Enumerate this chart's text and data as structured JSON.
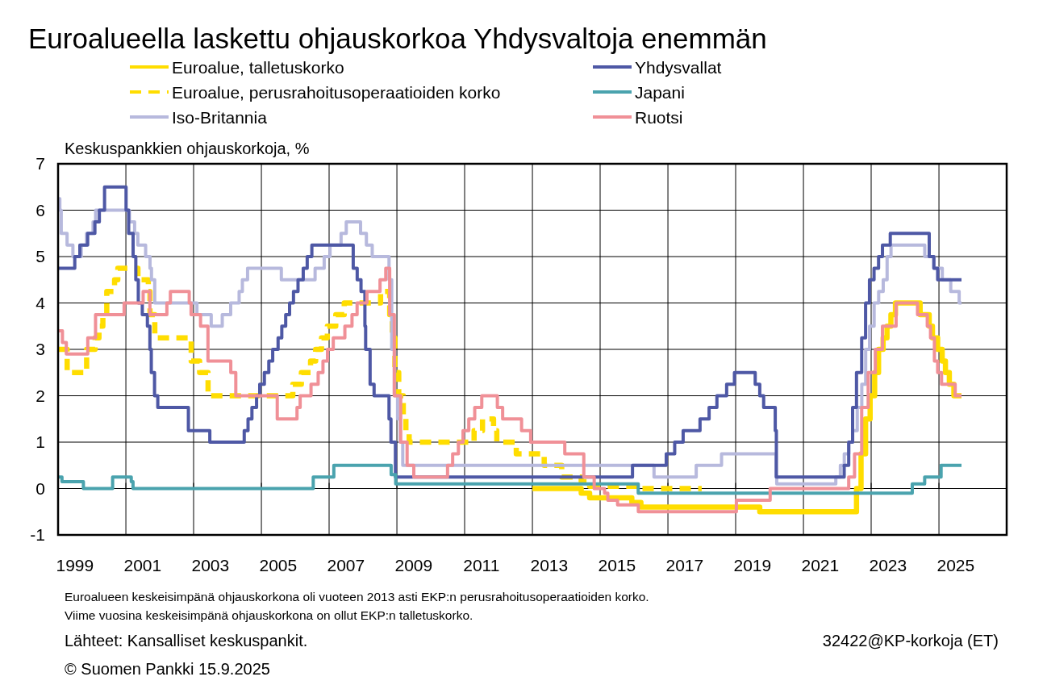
{
  "chart_data": {
    "type": "step",
    "title": "Euroalueella laskettu ohjauskorkoa Yhdysvaltoja enemmän",
    "ylabel": "Keskuspankkien ohjauskorkoja, %",
    "xlim": [
      "1999-01-01",
      "2027-01-01"
    ],
    "xticks": [
      {
        "value": "1999-01-01",
        "label": null
      },
      {
        "value": "2001-01-01",
        "label": null
      },
      {
        "value": "2003-01-01",
        "label": null
      },
      {
        "value": "2005-01-01",
        "label": null
      },
      {
        "value": "2007-01-01",
        "label": null
      },
      {
        "value": "2009-01-01",
        "label": null
      },
      {
        "value": "2011-01-01",
        "label": null
      },
      {
        "value": "2013-01-01",
        "label": null
      },
      {
        "value": "2015-01-01",
        "label": null
      },
      {
        "value": "2017-01-01",
        "label": null
      },
      {
        "value": "2019-01-01",
        "label": null
      },
      {
        "value": "2021-01-01",
        "label": null
      },
      {
        "value": "2023-01-01",
        "label": null
      },
      {
        "value": "2025-01-01",
        "label": null
      },
      {
        "value": "2027-01-01",
        "label": null
      },
      {
        "value": "1999-07-01",
        "label": "1999"
      },
      {
        "value": "2001-07-01",
        "label": "2001"
      },
      {
        "value": "2003-07-01",
        "label": "2003"
      },
      {
        "value": "2005-07-01",
        "label": "2005"
      },
      {
        "value": "2007-07-01",
        "label": "2007"
      },
      {
        "value": "2009-07-01",
        "label": "2009"
      },
      {
        "value": "2011-07-01",
        "label": "2011"
      },
      {
        "value": "2013-07-01",
        "label": "2013"
      },
      {
        "value": "2015-07-01",
        "label": "2015"
      },
      {
        "value": "2017-07-01",
        "label": "2017"
      },
      {
        "value": "2019-07-01",
        "label": "2019"
      },
      {
        "value": "2021-07-01",
        "label": "2021"
      },
      {
        "value": "2023-07-01",
        "label": "2023"
      },
      {
        "value": "2025-07-01",
        "label": "2025"
      }
    ],
    "ylim": [
      -1,
      7
    ],
    "yticks": [
      -1,
      0,
      1,
      2,
      3,
      4,
      5,
      6,
      7
    ],
    "grid": true,
    "legend": "top",
    "series": [
      {
        "name": "Euroalue, talletuskorko",
        "color": "#ffdd00",
        "line_style": "solid",
        "x": [
          "2013-01-01",
          "2014-06-11",
          "2014-09-10",
          "2015-12-09",
          "2016-03-16",
          "2019-09-18",
          "2022-07-27",
          "2022-09-14",
          "2022-11-02",
          "2022-12-21",
          "2023-02-08",
          "2023-03-22",
          "2023-05-10",
          "2023-06-21",
          "2023-08-02",
          "2023-09-20",
          "2024-06-12",
          "2024-09-18",
          "2024-10-23",
          "2024-12-18",
          "2025-02-05",
          "2025-03-12",
          "2025-04-23",
          "2025-06-11",
          "2025-09-01"
        ],
        "values": [
          0,
          -0.1,
          -0.2,
          -0.3,
          -0.4,
          -0.5,
          0,
          0.75,
          1.5,
          2,
          2.5,
          3,
          3.25,
          3.5,
          3.75,
          4,
          3.75,
          3.5,
          3.25,
          3,
          2.75,
          2.5,
          2.25,
          2,
          2
        ]
      },
      {
        "name": "Euroalue, perusrahoitusoperaatioiden korko",
        "color": "#ffdd00",
        "line_style": "dashed",
        "x": [
          "1999-01-01",
          "1999-04-09",
          "1999-11-05",
          "2000-02-04",
          "2000-03-17",
          "2000-04-28",
          "2000-06-09",
          "2000-09-01",
          "2000-10-06",
          "2001-05-11",
          "2001-08-31",
          "2001-09-18",
          "2001-11-09",
          "2002-12-06",
          "2003-03-07",
          "2003-06-06",
          "2005-12-06",
          "2006-03-08",
          "2006-06-15",
          "2006-08-09",
          "2006-10-11",
          "2006-12-13",
          "2007-03-14",
          "2007-06-13",
          "2008-07-09",
          "2008-10-15",
          "2008-11-12",
          "2008-12-10",
          "2009-01-21",
          "2009-03-11",
          "2009-04-08",
          "2009-05-13",
          "2011-04-13",
          "2011-07-13",
          "2011-11-09",
          "2011-12-14",
          "2012-07-11",
          "2013-05-08",
          "2013-11-13",
          "2014-06-11",
          "2014-09-10",
          "2016-03-16",
          "2017-12-31"
        ],
        "values": [
          3,
          2.5,
          3,
          3.25,
          3.5,
          3.75,
          4.25,
          4.5,
          4.75,
          4.5,
          4.25,
          3.75,
          3.25,
          2.75,
          2.5,
          2,
          2.25,
          2.5,
          2.75,
          3,
          3.25,
          3.5,
          3.75,
          4,
          4.25,
          3.75,
          3.25,
          2.5,
          2,
          1.5,
          1.25,
          1,
          1.25,
          1.5,
          1.25,
          1,
          0.75,
          0.5,
          0.25,
          0.15,
          0.05,
          0,
          0
        ]
      },
      {
        "name": "Iso-Britannia",
        "color": "#b7b9dd",
        "line_style": "solid",
        "x": [
          "1999-01-01",
          "1999-01-20",
          "1999-02-04",
          "1999-04-08",
          "1999-06-10",
          "1999-09-08",
          "1999-11-04",
          "2000-01-13",
          "2000-02-10",
          "2001-02-08",
          "2001-04-05",
          "2001-05-10",
          "2001-08-02",
          "2001-09-18",
          "2001-10-04",
          "2001-11-08",
          "2003-02-06",
          "2003-07-10",
          "2003-11-06",
          "2004-02-05",
          "2004-05-06",
          "2004-06-10",
          "2004-08-05",
          "2005-08-04",
          "2006-08-03",
          "2006-11-09",
          "2007-01-11",
          "2007-05-10",
          "2007-07-05",
          "2007-12-06",
          "2008-02-07",
          "2008-04-10",
          "2008-10-08",
          "2008-11-06",
          "2008-12-04",
          "2009-01-08",
          "2009-02-05",
          "2009-03-05",
          "2016-08-04",
          "2017-11-02",
          "2018-08-02",
          "2020-03-11",
          "2020-03-19",
          "2021-12-16",
          "2022-02-03",
          "2022-03-17",
          "2022-05-05",
          "2022-06-16",
          "2022-08-04",
          "2022-09-22",
          "2022-11-03",
          "2022-12-15",
          "2023-02-02",
          "2023-03-23",
          "2023-05-11",
          "2023-06-22",
          "2023-08-03",
          "2024-08-01",
          "2024-11-07",
          "2025-02-06",
          "2025-05-08",
          "2025-08-07",
          "2025-09-01"
        ],
        "values": [
          6.25,
          6,
          5.5,
          5.25,
          5,
          5.25,
          5.5,
          5.75,
          6,
          5.75,
          5.5,
          5.25,
          5,
          4.75,
          4.5,
          4,
          3.75,
          3.5,
          3.75,
          4,
          4.25,
          4.5,
          4.75,
          4.5,
          4.75,
          5,
          5.25,
          5.5,
          5.75,
          5.5,
          5.25,
          5,
          4.5,
          3,
          2,
          1.5,
          1,
          0.5,
          0.25,
          0.5,
          0.75,
          0.25,
          0.1,
          0.25,
          0.5,
          0.75,
          1,
          1.25,
          1.75,
          2.25,
          3,
          3.5,
          4,
          4.25,
          4.5,
          5,
          5.25,
          5,
          4.75,
          4.5,
          4.25,
          4,
          4
        ]
      },
      {
        "name": "Yhdysvallat",
        "color": "#4e58a5",
        "line_style": "solid",
        "x": [
          "1999-01-01",
          "1999-06-30",
          "1999-08-24",
          "1999-11-16",
          "2000-02-02",
          "2000-03-21",
          "2000-05-16",
          "2001-01-03",
          "2001-01-31",
          "2001-03-20",
          "2001-04-18",
          "2001-05-15",
          "2001-06-27",
          "2001-08-21",
          "2001-09-17",
          "2001-10-02",
          "2001-11-06",
          "2001-12-11",
          "2002-11-06",
          "2003-06-25",
          "2004-06-30",
          "2004-08-10",
          "2004-09-21",
          "2004-11-10",
          "2004-12-14",
          "2005-02-02",
          "2005-03-22",
          "2005-05-03",
          "2005-06-30",
          "2005-08-09",
          "2005-09-20",
          "2005-11-01",
          "2005-12-13",
          "2006-01-31",
          "2006-03-28",
          "2006-05-10",
          "2006-06-29",
          "2007-09-18",
          "2007-10-31",
          "2007-12-11",
          "2008-01-22",
          "2008-01-30",
          "2008-03-18",
          "2008-04-30",
          "2008-10-08",
          "2008-10-29",
          "2008-12-16",
          "2015-12-16",
          "2016-12-14",
          "2017-03-15",
          "2017-06-14",
          "2017-12-13",
          "2018-03-21",
          "2018-06-13",
          "2018-09-26",
          "2018-12-19",
          "2019-07-31",
          "2019-09-18",
          "2019-10-30",
          "2020-03-03",
          "2020-03-15",
          "2022-03-16",
          "2022-05-04",
          "2022-06-15",
          "2022-07-27",
          "2022-09-21",
          "2022-11-02",
          "2022-12-14",
          "2023-02-01",
          "2023-03-22",
          "2023-05-03",
          "2023-07-26",
          "2024-09-18",
          "2024-11-07",
          "2024-12-18",
          "2025-09-01"
        ],
        "values": [
          4.75,
          5,
          5.25,
          5.5,
          5.75,
          6,
          6.5,
          6,
          5.5,
          5,
          4.5,
          4,
          3.75,
          3.5,
          3,
          2.5,
          2,
          1.75,
          1.25,
          1,
          1.25,
          1.5,
          1.75,
          2,
          2.25,
          2.5,
          2.75,
          3,
          3.25,
          3.5,
          3.75,
          4,
          4.25,
          4.5,
          4.75,
          5,
          5.25,
          4.75,
          4.5,
          4.25,
          3.5,
          3,
          2.25,
          2,
          1.5,
          1,
          0.25,
          0.5,
          0.75,
          1,
          1.25,
          1.5,
          1.75,
          2,
          2.25,
          2.5,
          2.25,
          2,
          1.75,
          1.25,
          0.25,
          0.5,
          1,
          1.75,
          2.5,
          3.25,
          4,
          4.5,
          4.75,
          5,
          5.25,
          5.5,
          5,
          4.75,
          4.5,
          4.5
        ]
      },
      {
        "name": "Japani",
        "color": "#4aa3ae",
        "line_style": "solid",
        "x": [
          "1999-01-01",
          "1999-02-12",
          "1999-10-01",
          "2000-08-11",
          "2001-02-28",
          "2001-03-19",
          "2006-07-14",
          "2007-02-21",
          "2008-10-31",
          "2008-12-19",
          "2016-02-16",
          "2024-03-19",
          "2024-07-31",
          "2025-01-24",
          "2025-09-01"
        ],
        "values": [
          0.25,
          0.15,
          0,
          0.25,
          0.15,
          0,
          0.25,
          0.5,
          0.3,
          0.1,
          -0.1,
          0.1,
          0.25,
          0.5,
          0.5
        ]
      },
      {
        "name": "Ruotsi",
        "color": "#f09097",
        "line_style": "solid",
        "x": [
          "1999-01-01",
          "1999-02-17",
          "1999-03-31",
          "1999-11-17",
          "2000-02-09",
          "2000-12-13",
          "2001-07-06",
          "2001-09-17",
          "2002-03-19",
          "2002-04-26",
          "2002-11-15",
          "2002-12-05",
          "2003-03-17",
          "2003-06-05",
          "2004-02-06",
          "2004-03-31",
          "2005-06-21",
          "2006-01-20",
          "2006-02-23",
          "2006-06-20",
          "2006-09-05",
          "2006-10-27",
          "2006-12-15",
          "2007-02-15",
          "2007-06-20",
          "2007-09-05",
          "2007-10-30",
          "2008-02-13",
          "2008-07-03",
          "2008-09-03",
          "2008-10-15",
          "2008-12-04",
          "2009-02-11",
          "2009-04-21",
          "2009-07-02",
          "2010-07-01",
          "2010-08-25",
          "2010-10-26",
          "2010-12-15",
          "2011-02-15",
          "2011-04-20",
          "2011-07-05",
          "2011-12-20",
          "2012-02-15",
          "2012-09-06",
          "2012-12-13",
          "2013-12-16",
          "2014-07-09",
          "2014-10-29",
          "2015-02-18",
          "2015-03-25",
          "2015-07-08",
          "2016-02-17",
          "2019-01-09",
          "2020-01-08",
          "2022-05-04",
          "2022-07-06",
          "2022-09-21",
          "2022-11-30",
          "2023-02-15",
          "2023-05-03",
          "2023-09-27",
          "2024-05-15",
          "2024-08-28",
          "2024-10-02",
          "2024-11-13",
          "2024-12-18",
          "2025-01-29",
          "2025-06-25",
          "2025-09-01"
        ],
        "values": [
          3.4,
          3.15,
          2.9,
          3.25,
          3.75,
          4,
          4.25,
          3.75,
          4,
          4.25,
          4,
          3.75,
          3.5,
          2.75,
          2.5,
          2,
          1.5,
          1.75,
          2,
          2.25,
          2.5,
          2.75,
          3,
          3.25,
          3.5,
          3.75,
          4,
          4.25,
          4.5,
          4.75,
          3.75,
          2,
          1,
          0.5,
          0.25,
          0.5,
          0.75,
          1,
          1.25,
          1.5,
          1.75,
          2,
          1.75,
          1.5,
          1.25,
          1,
          0.75,
          0.25,
          0,
          -0.1,
          -0.25,
          -0.35,
          -0.5,
          -0.25,
          0,
          0.25,
          0.75,
          1.75,
          2.5,
          3,
          3.5,
          4,
          3.75,
          3.5,
          3.25,
          2.75,
          2.5,
          2.25,
          2,
          2
        ]
      }
    ],
    "annotations": [
      "Euroalueen keskeisimpänä ohjauskorkona oli vuoteen 2013 asti EKP:n perusrahoitusoperaatioiden korko.",
      "Viime vuosina keskeisimpänä ohjauskorkona on ollut EKP:n talletuskorko.",
      "Lähteet: Kansalliset keskuspankit.",
      "32422@KP-korkoja (ET)",
      "© Suomen Pankki 15.9.2025"
    ]
  }
}
